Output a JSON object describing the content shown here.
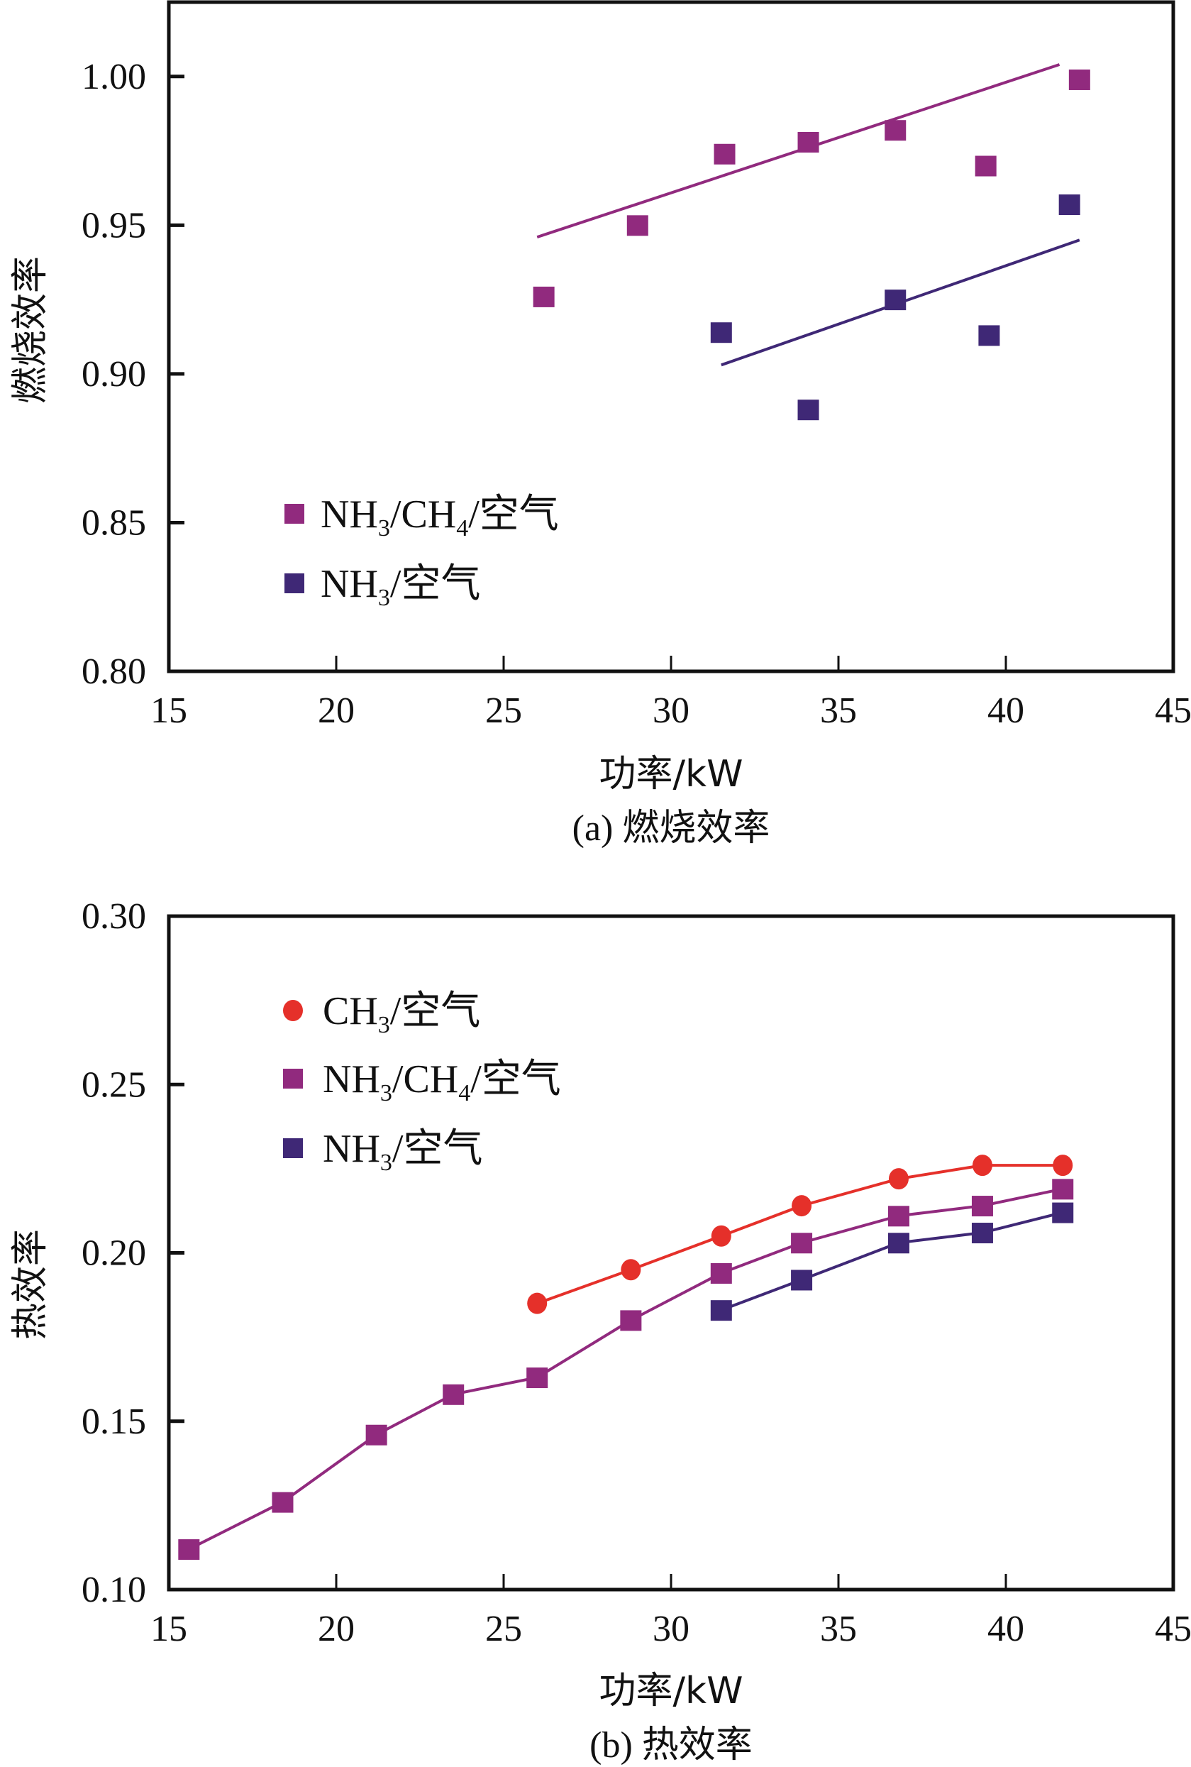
{
  "chart_data": [
    {
      "id": "a",
      "type": "scatter",
      "title": "(a) 燃烧效率",
      "xlabel": "功率/kW",
      "ylabel": "燃烧效率",
      "xlim": [
        15,
        45
      ],
      "ylim": [
        0.8,
        1.025
      ],
      "xticks": [
        "15",
        "20",
        "25",
        "30",
        "35",
        "40",
        "45"
      ],
      "xtick_values": [
        15,
        20,
        25,
        30,
        35,
        40,
        45
      ],
      "yticks": [
        "0.80",
        "0.85",
        "0.90",
        "0.95",
        "1.00"
      ],
      "ytick_values": [
        0.8,
        0.85,
        0.9,
        0.95,
        1.0
      ],
      "grid": false,
      "legend_position": "left-lower",
      "series": [
        {
          "name": "NH3/CH4/空气",
          "label_parts": [
            [
              "NH",
              ""
            ],
            [
              "3",
              "sub"
            ],
            [
              "/CH",
              ""
            ],
            [
              "4",
              "sub"
            ],
            [
              "/空气",
              ""
            ]
          ],
          "marker": "square",
          "color": "#912a7e",
          "x": [
            26.2,
            29.0,
            31.6,
            34.1,
            36.7,
            39.4,
            42.2
          ],
          "y": [
            0.926,
            0.95,
            0.974,
            0.978,
            0.982,
            0.97,
            0.999
          ],
          "fit_line": {
            "x": [
              26.0,
              41.6
            ],
            "y": [
              0.946,
              1.004
            ]
          }
        },
        {
          "name": "NH3/空气",
          "label_parts": [
            [
              "NH",
              ""
            ],
            [
              "3",
              "sub"
            ],
            [
              "/空气",
              ""
            ]
          ],
          "marker": "square",
          "color": "#3f2876",
          "x": [
            31.5,
            34.1,
            36.7,
            39.5,
            41.9
          ],
          "y": [
            0.914,
            0.888,
            0.925,
            0.913,
            0.957
          ],
          "fit_line": {
            "x": [
              31.5,
              42.2
            ],
            "y": [
              0.903,
              0.945
            ]
          }
        }
      ]
    },
    {
      "id": "b",
      "type": "line",
      "title": "(b) 热效率",
      "xlabel": "功率/kW",
      "ylabel": "热效率",
      "xlim": [
        15,
        45
      ],
      "ylim": [
        0.1,
        0.3
      ],
      "xticks": [
        "15",
        "20",
        "25",
        "30",
        "35",
        "40",
        "45"
      ],
      "xtick_values": [
        15,
        20,
        25,
        30,
        35,
        40,
        45
      ],
      "yticks": [
        "0.10",
        "0.15",
        "0.20",
        "0.25",
        "0.30"
      ],
      "ytick_values": [
        0.1,
        0.15,
        0.2,
        0.25,
        0.3
      ],
      "grid": false,
      "legend_position": "top-left",
      "series": [
        {
          "name": "CH3/空气",
          "label_parts": [
            [
              "CH",
              ""
            ],
            [
              "3",
              "sub"
            ],
            [
              "/空气",
              ""
            ]
          ],
          "marker": "circle",
          "color": "#e5302a",
          "x": [
            26.0,
            28.8,
            31.5,
            33.9,
            36.8,
            39.3,
            41.7
          ],
          "y": [
            0.185,
            0.195,
            0.205,
            0.214,
            0.222,
            0.226,
            0.226
          ]
        },
        {
          "name": "NH3/CH4/空气",
          "label_parts": [
            [
              "NH",
              ""
            ],
            [
              "3",
              "sub"
            ],
            [
              "/CH",
              ""
            ],
            [
              "4",
              "sub"
            ],
            [
              "/空气",
              ""
            ]
          ],
          "marker": "square",
          "color": "#912a7e",
          "x": [
            15.6,
            18.4,
            21.2,
            23.5,
            26.0,
            28.8,
            31.5,
            33.9,
            36.8,
            39.3,
            41.7
          ],
          "y": [
            0.112,
            0.126,
            0.146,
            0.158,
            0.163,
            0.18,
            0.194,
            0.203,
            0.211,
            0.214,
            0.219
          ]
        },
        {
          "name": "NH3/空气",
          "label_parts": [
            [
              "NH",
              ""
            ],
            [
              "3",
              "sub"
            ],
            [
              "/空气",
              ""
            ]
          ],
          "marker": "square",
          "color": "#3f2876",
          "x": [
            31.5,
            33.9,
            36.8,
            39.3,
            41.7
          ],
          "y": [
            0.183,
            0.192,
            0.203,
            0.206,
            0.212
          ]
        }
      ]
    }
  ]
}
